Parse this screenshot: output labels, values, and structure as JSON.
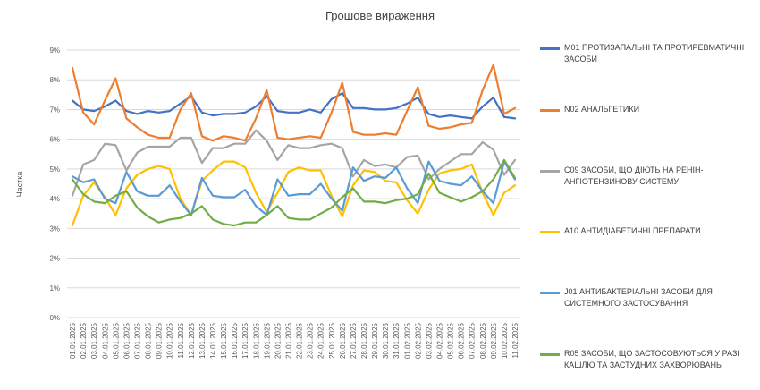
{
  "chart_data": {
    "type": "line",
    "title": "Грошове вираження",
    "ylabel": "Частка",
    "xlabel": "",
    "ylim": [
      0,
      9
    ],
    "yticks": [
      0,
      1,
      2,
      3,
      4,
      5,
      6,
      7,
      8,
      9
    ],
    "ytick_labels": [
      "0%",
      "1%",
      "2%",
      "3%",
      "4%",
      "5%",
      "6%",
      "7%",
      "8%",
      "9%"
    ],
    "grid": true,
    "legend_position": "right",
    "categories": [
      "01.01.2025",
      "02.01.2025",
      "03.01.2025",
      "04.01.2025",
      "05.01.2025",
      "06.01.2025",
      "07.01.2025",
      "08.01.2025",
      "09.01.2025",
      "10.01.2025",
      "11.01.2025",
      "12.01.2025",
      "13.01.2025",
      "14.01.2025",
      "15.01.2025",
      "16.01.2025",
      "17.01.2025",
      "18.01.2025",
      "19.01.2025",
      "20.01.2025",
      "21.01.2025",
      "22.01.2025",
      "23.01.2025",
      "24.01.2025",
      "25.01.2025",
      "26.01.2025",
      "27.01.2025",
      "28.01.2025",
      "29.01.2025",
      "30.01.2025",
      "31.01.2025",
      "01.02.2025",
      "02.02.2025",
      "03.02.2025",
      "04.02.2025",
      "05.02.2025",
      "06.02.2025",
      "07.02.2025",
      "08.02.2025",
      "09.02.2025",
      "10.02.2025",
      "11.02.2025"
    ],
    "series": [
      {
        "name": "M01 ПРОТИЗАПАЛЬНІ ТА ПРОТИРЕВМАТИЧНІ ЗАСОБИ",
        "color": "#4472C4",
        "values": [
          7.3,
          7.0,
          6.95,
          7.1,
          7.3,
          6.95,
          6.85,
          6.95,
          6.9,
          6.95,
          7.2,
          7.45,
          6.9,
          6.8,
          6.85,
          6.85,
          6.9,
          7.1,
          7.45,
          6.95,
          6.9,
          6.9,
          7.0,
          6.9,
          7.35,
          7.55,
          7.05,
          7.05,
          7.0,
          7.0,
          7.05,
          7.2,
          7.4,
          6.85,
          6.75,
          6.8,
          6.75,
          6.7,
          7.1,
          7.4,
          6.75,
          6.7
        ]
      },
      {
        "name": "N02 АНАЛЬГЕТИКИ",
        "color": "#ED7D31",
        "values": [
          8.4,
          6.9,
          6.5,
          7.3,
          8.05,
          6.7,
          6.4,
          6.15,
          6.05,
          6.05,
          7.0,
          7.55,
          6.1,
          5.95,
          6.1,
          6.05,
          5.95,
          6.7,
          7.65,
          6.05,
          6.0,
          6.05,
          6.1,
          6.05,
          6.9,
          7.9,
          6.25,
          6.15,
          6.15,
          6.2,
          6.15,
          6.95,
          7.75,
          6.45,
          6.35,
          6.4,
          6.5,
          6.55,
          7.65,
          8.5,
          6.85,
          7.05
        ]
      },
      {
        "name": "C09 ЗАСОБИ, ЩО ДІЮТЬ НА РЕНІН-АНГІОТЕНЗИНОВУ СИСТЕМУ",
        "color": "#A5A5A5",
        "values": [
          4.1,
          5.15,
          5.3,
          5.85,
          5.8,
          4.95,
          5.55,
          5.75,
          5.75,
          5.75,
          6.05,
          6.05,
          5.2,
          5.7,
          5.7,
          5.85,
          5.85,
          6.3,
          5.95,
          5.3,
          5.8,
          5.7,
          5.7,
          5.8,
          5.85,
          5.7,
          4.75,
          5.3,
          5.1,
          5.15,
          5.05,
          5.4,
          5.45,
          4.65,
          5.0,
          5.25,
          5.5,
          5.5,
          5.9,
          5.65,
          4.8,
          5.3
        ]
      },
      {
        "name": "A10 АНТИДІАБЕТИЧНІ ПРЕПАРАТИ",
        "color": "#FFC000",
        "values": [
          3.1,
          4.1,
          4.55,
          4.05,
          3.45,
          4.35,
          4.8,
          5.0,
          5.1,
          5.0,
          4.0,
          3.45,
          4.6,
          4.95,
          5.25,
          5.25,
          5.05,
          4.2,
          3.55,
          4.2,
          4.9,
          5.05,
          4.95,
          4.95,
          4.1,
          3.4,
          4.45,
          4.95,
          4.9,
          4.6,
          4.55,
          3.95,
          3.5,
          4.3,
          4.85,
          4.95,
          5.0,
          5.15,
          4.2,
          3.45,
          4.2,
          4.45
        ]
      },
      {
        "name": "J01 АНТИБАКТЕРІАЛЬНІ ЗАСОБИ ДЛЯ СИСТЕМНОГО ЗАСТОСУВАННЯ",
        "color": "#5B9BD5",
        "values": [
          4.75,
          4.55,
          4.65,
          4.0,
          3.85,
          4.9,
          4.25,
          4.1,
          4.1,
          4.45,
          3.9,
          3.45,
          4.7,
          4.1,
          4.05,
          4.05,
          4.3,
          3.75,
          3.45,
          4.65,
          4.1,
          4.15,
          4.15,
          4.5,
          4.0,
          3.6,
          5.05,
          4.6,
          4.75,
          4.7,
          5.05,
          4.35,
          3.85,
          5.25,
          4.6,
          4.5,
          4.45,
          4.75,
          4.25,
          3.85,
          5.25,
          4.65
        ]
      },
      {
        "name": "R05 ЗАСОБИ, ЩО ЗАСТОСОВУЮТЬСЯ У РАЗІ КАШЛЮ ТА ЗАСТУДНИХ ЗАХВОРЮВАНЬ",
        "color": "#70AD47",
        "values": [
          4.65,
          4.15,
          3.9,
          3.85,
          4.1,
          4.25,
          3.7,
          3.4,
          3.2,
          3.3,
          3.35,
          3.5,
          3.75,
          3.3,
          3.15,
          3.1,
          3.2,
          3.2,
          3.45,
          3.75,
          3.35,
          3.3,
          3.3,
          3.5,
          3.7,
          4.05,
          4.35,
          3.9,
          3.9,
          3.85,
          3.95,
          4.0,
          4.15,
          4.85,
          4.2,
          4.05,
          3.9,
          4.05,
          4.25,
          4.65,
          5.3,
          4.7
        ]
      }
    ]
  }
}
